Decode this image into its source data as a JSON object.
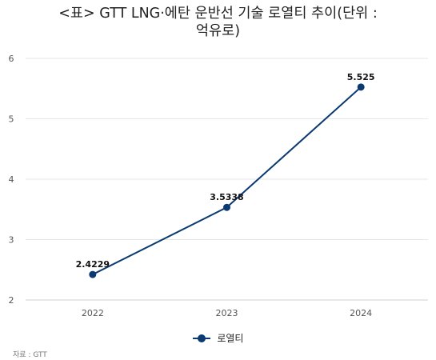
{
  "title_line1": "<표> GTT LNG·에탄 운반선 기술 로열티 추이(단위 :",
  "title_line2": "억유로)",
  "source": "자료 : GTT",
  "chart_data": {
    "type": "line",
    "title": "<표> GTT LNG·에탄 운반선 기술 로열티 추이(단위 : 억유로)",
    "xlabel": "",
    "ylabel": "",
    "categories": [
      "2022",
      "2023",
      "2024"
    ],
    "ylim": [
      2,
      6
    ],
    "yticks": [
      "2",
      "3",
      "4",
      "5",
      "6"
    ],
    "grid": true,
    "legend_position": "bottom",
    "series": [
      {
        "name": "로열티",
        "values": [
          2.4229,
          3.5338,
          5.525
        ],
        "labels": [
          "2.4229",
          "3.5338",
          "5.525"
        ],
        "color": "#0b3a73"
      }
    ]
  }
}
